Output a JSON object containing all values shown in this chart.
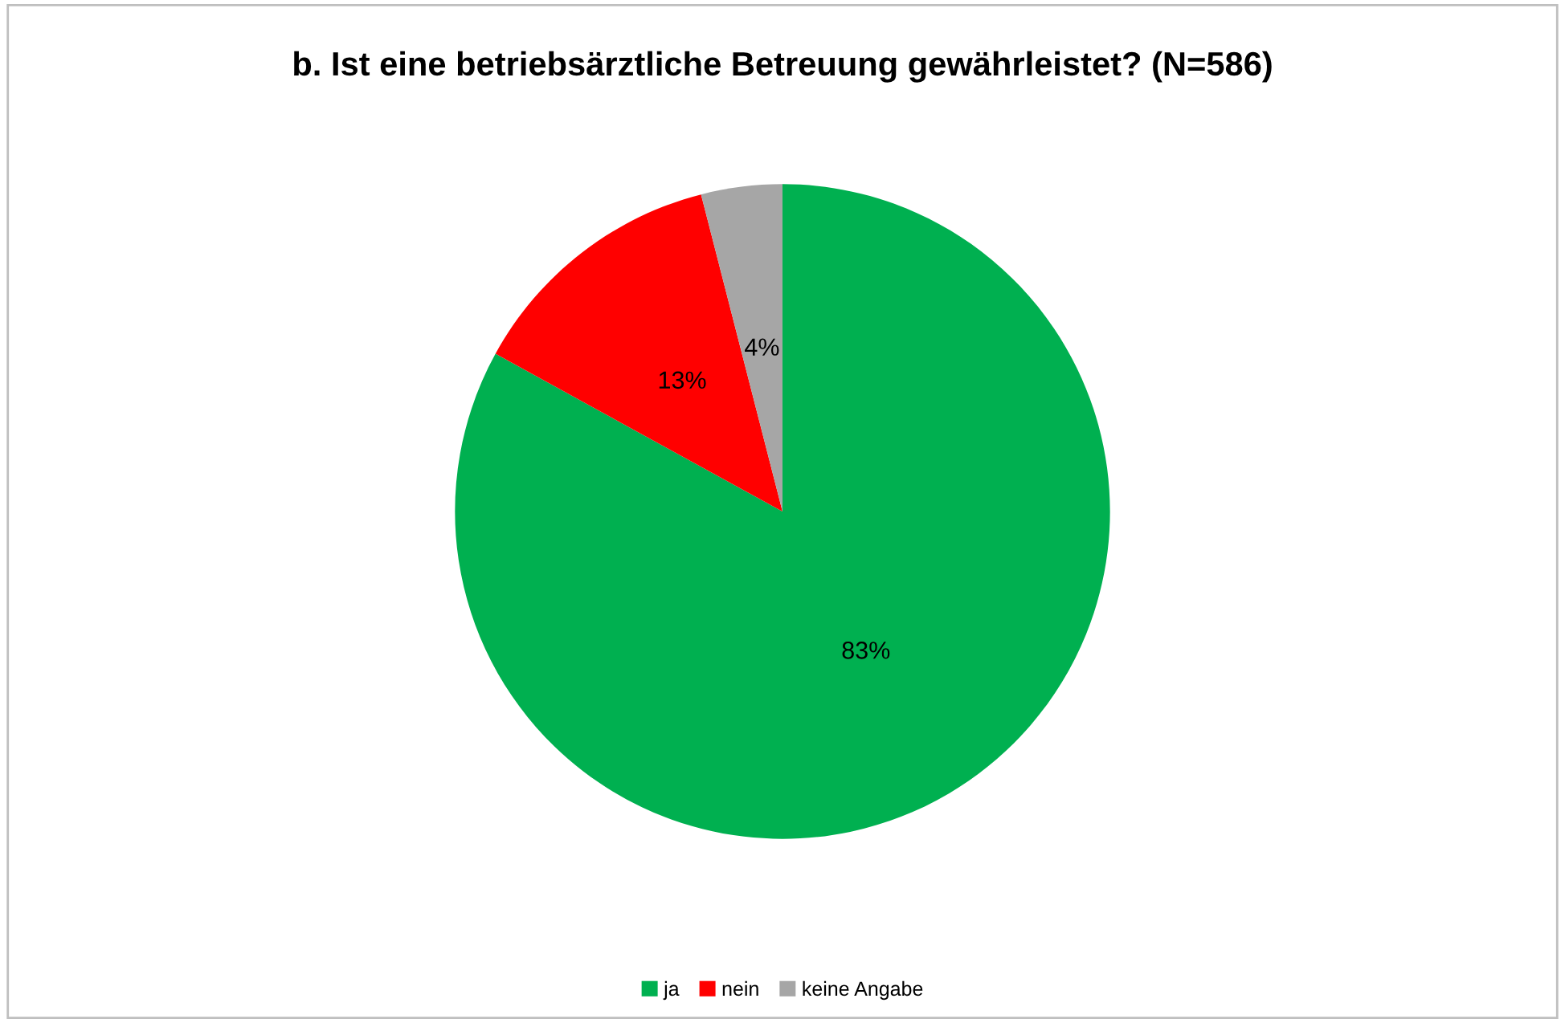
{
  "chart_data": {
    "type": "pie",
    "title": "b. Ist eine betriebsärztliche Betreuung gewährleistet? (N=586)",
    "categories": [
      "ja",
      "nein",
      "keine Angabe"
    ],
    "values": [
      83,
      13,
      4
    ],
    "colors": [
      "#00b050",
      "#ff0000",
      "#a6a6a6"
    ],
    "value_labels": [
      "83%",
      "13%",
      "4%"
    ],
    "legend": "bottom"
  }
}
